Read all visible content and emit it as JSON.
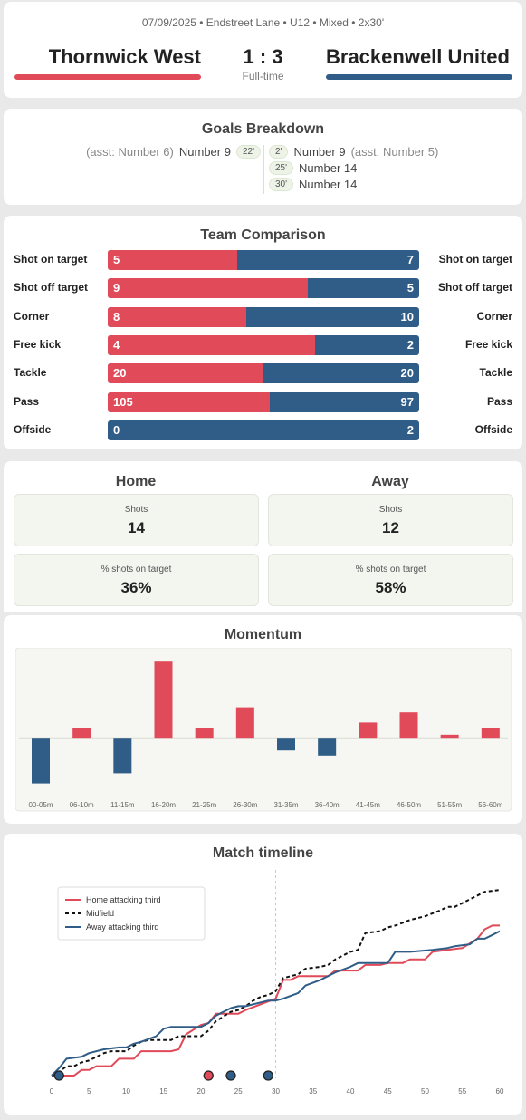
{
  "header": {
    "meta": "07/09/2025 • Endstreet Lane • U12 • Mixed • 2x30'",
    "home_team": "Thornwick West",
    "away_team": "Brackenwell United",
    "score": "1 : 3",
    "status": "Full-time",
    "colors": {
      "home": "#e04a59",
      "away": "#2f5d87"
    }
  },
  "goals": {
    "title": "Goals Breakdown",
    "home": [
      {
        "assist": "(asst: Number 6)",
        "scorer": "Number 9",
        "minute": "22'"
      }
    ],
    "away": [
      {
        "minute": "2'",
        "scorer": "Number 9",
        "assist": "(asst: Number 5)"
      },
      {
        "minute": "25'",
        "scorer": "Number 14",
        "assist": ""
      },
      {
        "minute": "30'",
        "scorer": "Number 14",
        "assist": ""
      }
    ]
  },
  "comparison": {
    "title": "Team Comparison",
    "rows": [
      {
        "label": "Shot on target",
        "home": 5,
        "away": 7
      },
      {
        "label": "Shot off target",
        "home": 9,
        "away": 5
      },
      {
        "label": "Corner",
        "home": 8,
        "away": 10
      },
      {
        "label": "Free kick",
        "home": 4,
        "away": 2
      },
      {
        "label": "Tackle",
        "home": 20,
        "away": 20
      },
      {
        "label": "Pass",
        "home": 105,
        "away": 97
      },
      {
        "label": "Offside",
        "home": 0,
        "away": 2
      }
    ]
  },
  "stats": {
    "home_title": "Home",
    "away_title": "Away",
    "shots_label": "Shots",
    "pct_label": "% shots on target",
    "home_shots": "14",
    "away_shots": "12",
    "home_pct": "36%",
    "away_pct": "58%"
  },
  "momentum": {
    "title": "Momentum",
    "chart_data": {
      "type": "bar",
      "categories": [
        "00-05m",
        "06-10m",
        "11-15m",
        "16-20m",
        "21-25m",
        "26-30m",
        "31-35m",
        "36-40m",
        "41-45m",
        "46-50m",
        "51-55m",
        "56-60m"
      ],
      "values": [
        -9,
        2,
        -7,
        15,
        2,
        6,
        -2.5,
        -3.5,
        3,
        5,
        0.6,
        2
      ],
      "ylim": [
        -13,
        17
      ]
    }
  },
  "timeline": {
    "title": "Match timeline",
    "chart_data": {
      "type": "line",
      "xlim": [
        0,
        60
      ],
      "x_ticks": [
        0,
        5,
        10,
        15,
        20,
        25,
        30,
        35,
        40,
        45,
        50,
        55,
        60
      ],
      "ylim": [
        0,
        100
      ],
      "legend_position": "top-left",
      "halftime_marker": 30,
      "series": [
        {
          "name": "Home attacking third",
          "color": "#e04a59",
          "style": "solid",
          "points": [
            [
              0,
              0
            ],
            [
              3,
              0
            ],
            [
              4,
              3
            ],
            [
              5,
              3
            ],
            [
              6,
              5
            ],
            [
              8,
              5
            ],
            [
              9,
              9
            ],
            [
              11,
              9
            ],
            [
              12,
              13
            ],
            [
              16,
              13
            ],
            [
              17,
              14
            ],
            [
              18,
              22
            ],
            [
              20,
              27
            ],
            [
              21,
              28
            ],
            [
              22,
              33
            ],
            [
              25,
              33
            ],
            [
              26,
              35
            ],
            [
              28,
              38
            ],
            [
              30,
              41
            ],
            [
              31,
              51
            ],
            [
              32,
              51
            ],
            [
              33,
              53
            ],
            [
              37,
              53
            ],
            [
              38,
              56
            ],
            [
              41,
              56
            ],
            [
              42,
              59
            ],
            [
              44,
              59
            ],
            [
              45,
              60
            ],
            [
              47,
              60
            ],
            [
              48,
              62
            ],
            [
              50,
              62
            ],
            [
              51,
              66
            ],
            [
              55,
              68
            ],
            [
              57,
              73
            ],
            [
              58,
              78
            ],
            [
              59,
              80
            ],
            [
              60,
              80
            ]
          ]
        },
        {
          "name": "Midfield",
          "color": "#111111",
          "style": "dashed",
          "points": [
            [
              0,
              0
            ],
            [
              1,
              2
            ],
            [
              2,
              5
            ],
            [
              3,
              5
            ],
            [
              4,
              7
            ],
            [
              5,
              8
            ],
            [
              6,
              10
            ],
            [
              7,
              12
            ],
            [
              8,
              13
            ],
            [
              10,
              13
            ],
            [
              11,
              16
            ],
            [
              12,
              18
            ],
            [
              13,
              19
            ],
            [
              16,
              19
            ],
            [
              17,
              21
            ],
            [
              20,
              21
            ],
            [
              21,
              24
            ],
            [
              22,
              29
            ],
            [
              24,
              34
            ],
            [
              25,
              35
            ],
            [
              26,
              37
            ],
            [
              27,
              40
            ],
            [
              28,
              42
            ],
            [
              29,
              43
            ],
            [
              30,
              45
            ],
            [
              31,
              52
            ],
            [
              33,
              54
            ],
            [
              34,
              57
            ],
            [
              36,
              58
            ],
            [
              37,
              59
            ],
            [
              38,
              62
            ],
            [
              39,
              64
            ],
            [
              40,
              66
            ],
            [
              41,
              67
            ],
            [
              42,
              76
            ],
            [
              44,
              77
            ],
            [
              45,
              79
            ],
            [
              46,
              80
            ],
            [
              48,
              83
            ],
            [
              50,
              85
            ],
            [
              52,
              88
            ],
            [
              53,
              90
            ],
            [
              54,
              90
            ],
            [
              55,
              92
            ],
            [
              56,
              94
            ],
            [
              57,
              96
            ],
            [
              58,
              98
            ],
            [
              60,
              99
            ]
          ]
        },
        {
          "name": "Away attacking third",
          "color": "#2f5d87",
          "style": "solid",
          "points": [
            [
              0,
              0
            ],
            [
              1,
              4
            ],
            [
              2,
              9
            ],
            [
              4,
              10
            ],
            [
              5,
              12
            ],
            [
              7,
              14
            ],
            [
              9,
              15
            ],
            [
              10,
              15
            ],
            [
              11,
              17
            ],
            [
              12,
              18
            ],
            [
              14,
              21
            ],
            [
              15,
              25
            ],
            [
              16,
              26
            ],
            [
              18,
              26
            ],
            [
              20,
              26
            ],
            [
              21,
              28
            ],
            [
              22,
              32
            ],
            [
              24,
              36
            ],
            [
              25,
              37
            ],
            [
              26,
              37
            ],
            [
              27,
              38
            ],
            [
              29,
              40
            ],
            [
              30,
              40
            ],
            [
              31,
              41
            ],
            [
              33,
              44
            ],
            [
              34,
              48
            ],
            [
              36,
              51
            ],
            [
              38,
              55
            ],
            [
              40,
              58
            ],
            [
              41,
              60
            ],
            [
              45,
              60
            ],
            [
              46,
              66
            ],
            [
              48,
              66
            ],
            [
              51,
              67
            ],
            [
              53,
              68
            ],
            [
              54,
              69
            ],
            [
              56,
              70
            ],
            [
              57,
              73
            ],
            [
              58,
              73
            ],
            [
              59,
              75
            ],
            [
              60,
              77
            ]
          ]
        }
      ],
      "goal_markers": [
        {
          "minute": 1,
          "team": "away"
        },
        {
          "minute": 21,
          "team": "home"
        },
        {
          "minute": 24,
          "team": "away"
        },
        {
          "minute": 29,
          "team": "away"
        }
      ]
    }
  }
}
